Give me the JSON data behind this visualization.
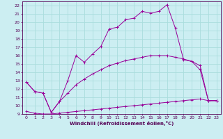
{
  "xlabel": "Windchill (Refroidissement éolien,°C)",
  "bg_color": "#cceef2",
  "grid_color": "#aadddd",
  "line_color": "#990099",
  "xlim": [
    -0.5,
    23.5
  ],
  "ylim": [
    9,
    22.5
  ],
  "xticks": [
    0,
    1,
    2,
    3,
    4,
    5,
    6,
    7,
    8,
    9,
    10,
    11,
    12,
    13,
    14,
    15,
    16,
    17,
    18,
    19,
    20,
    21,
    22,
    23
  ],
  "yticks": [
    9,
    10,
    11,
    12,
    13,
    14,
    15,
    16,
    17,
    18,
    19,
    20,
    21,
    22
  ],
  "line1_x": [
    0,
    1,
    2,
    3,
    4,
    5,
    6,
    7,
    8,
    9,
    10,
    11,
    12,
    13,
    14,
    15,
    16,
    17,
    18,
    19,
    20,
    21,
    22,
    23
  ],
  "line1_y": [
    12.8,
    11.7,
    11.5,
    9.2,
    10.5,
    13.0,
    16.0,
    15.2,
    16.2,
    17.1,
    19.2,
    19.4,
    20.3,
    20.5,
    21.3,
    21.1,
    21.3,
    22.1,
    19.3,
    15.5,
    15.3,
    14.3,
    10.6,
    10.6
  ],
  "line2_x": [
    0,
    1,
    2,
    3,
    4,
    5,
    6,
    7,
    8,
    9,
    10,
    11,
    12,
    13,
    14,
    15,
    16,
    17,
    18,
    19,
    20,
    21,
    22,
    23
  ],
  "line2_y": [
    12.8,
    11.7,
    11.5,
    9.2,
    10.5,
    11.5,
    12.5,
    13.2,
    13.8,
    14.3,
    14.8,
    15.1,
    15.4,
    15.6,
    15.8,
    16.0,
    16.0,
    16.0,
    15.8,
    15.6,
    15.3,
    14.8,
    10.6,
    10.6
  ],
  "line3_x": [
    0,
    1,
    2,
    3,
    4,
    5,
    6,
    7,
    8,
    9,
    10,
    11,
    12,
    13,
    14,
    15,
    16,
    17,
    18,
    19,
    20,
    21,
    22,
    23
  ],
  "line3_y": [
    9.3,
    9.1,
    9.0,
    9.0,
    9.1,
    9.2,
    9.3,
    9.4,
    9.5,
    9.6,
    9.7,
    9.8,
    9.9,
    10.0,
    10.1,
    10.2,
    10.3,
    10.4,
    10.5,
    10.6,
    10.7,
    10.8,
    10.6,
    10.6
  ]
}
